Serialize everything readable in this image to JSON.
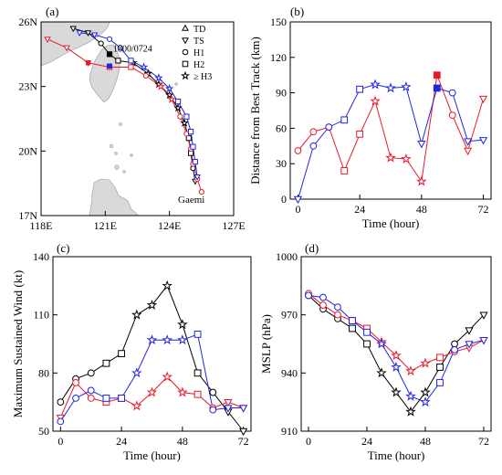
{
  "figure": {
    "panels": [
      "(a)",
      "(b)",
      "(c)",
      "(d)"
    ]
  },
  "colors": {
    "black": "#000000",
    "red": "#e8192c",
    "blue": "#1f25e0",
    "land": "#d9d9d9"
  },
  "chart_data": [
    {
      "type": "map",
      "panel": "(a)",
      "xlim": [
        118,
        127
      ],
      "ylim": [
        17,
        26
      ],
      "xticks": [
        "118E",
        "121E",
        "124E",
        "127E"
      ],
      "yticks": [
        "17N",
        "20N",
        "23N",
        "26N"
      ],
      "annotations": [
        "1800/0724",
        "Gaemi"
      ],
      "legend": [
        "TD",
        "TS",
        "H1",
        "H2",
        "≥ H3"
      ],
      "legend_markers": [
        "triangle-up",
        "triangle-down",
        "circle",
        "square",
        "star"
      ],
      "marker_point": {
        "lon": 121.2,
        "lat": 24.5,
        "label": "1800/0724"
      },
      "tracks": [
        {
          "color": "black",
          "points": [
            {
              "lon": 119.5,
              "lat": 25.7,
              "m": "triangle-down"
            },
            {
              "lon": 120.2,
              "lat": 25.5,
              "m": "triangle-down"
            },
            {
              "lon": 120.8,
              "lat": 25.0,
              "m": "circle"
            },
            {
              "lon": 121.2,
              "lat": 24.5,
              "m": "square"
            },
            {
              "lon": 121.6,
              "lat": 24.2,
              "m": "square"
            },
            {
              "lon": 122.3,
              "lat": 24.1,
              "m": "star"
            },
            {
              "lon": 123.0,
              "lat": 23.6,
              "m": "star"
            },
            {
              "lon": 123.5,
              "lat": 23.1,
              "m": "star"
            },
            {
              "lon": 124.0,
              "lat": 22.6,
              "m": "star"
            },
            {
              "lon": 124.4,
              "lat": 22.0,
              "m": "star"
            },
            {
              "lon": 124.7,
              "lat": 21.3,
              "m": "star"
            },
            {
              "lon": 124.9,
              "lat": 20.6,
              "m": "square"
            },
            {
              "lon": 125.0,
              "lat": 19.9,
              "m": "square"
            },
            {
              "lon": 125.1,
              "lat": 19.2,
              "m": "circle"
            },
            {
              "lon": 125.2,
              "lat": 18.6,
              "m": "triangle-down"
            }
          ]
        },
        {
          "color": "red",
          "points": [
            {
              "lon": 118.3,
              "lat": 25.2,
              "m": "triangle-down"
            },
            {
              "lon": 119.2,
              "lat": 24.8,
              "m": "triangle-down"
            },
            {
              "lon": 120.2,
              "lat": 24.1,
              "m": "triangle-down"
            },
            {
              "lon": 121.2,
              "lat": 23.9,
              "m": "square"
            },
            {
              "lon": 122.2,
              "lat": 23.9,
              "m": "square"
            },
            {
              "lon": 122.9,
              "lat": 23.5,
              "m": "circle"
            },
            {
              "lon": 123.6,
              "lat": 23.0,
              "m": "star"
            },
            {
              "lon": 124.1,
              "lat": 22.4,
              "m": "star"
            },
            {
              "lon": 124.5,
              "lat": 21.6,
              "m": "circle"
            },
            {
              "lon": 124.8,
              "lat": 20.8,
              "m": "circle"
            },
            {
              "lon": 125.0,
              "lat": 20.1,
              "m": "circle"
            },
            {
              "lon": 125.1,
              "lat": 19.4,
              "m": "circle"
            },
            {
              "lon": 125.3,
              "lat": 18.7,
              "m": "circle"
            },
            {
              "lon": 125.5,
              "lat": 18.1,
              "m": "circle"
            }
          ]
        },
        {
          "color": "blue",
          "points": [
            {
              "lon": 119.8,
              "lat": 25.5,
              "m": "triangle-down"
            },
            {
              "lon": 120.5,
              "lat": 25.4,
              "m": "triangle-down"
            },
            {
              "lon": 121.2,
              "lat": 25.2,
              "m": "circle"
            },
            {
              "lon": 121.7,
              "lat": 24.8,
              "m": "circle"
            },
            {
              "lon": 122.2,
              "lat": 24.2,
              "m": "square"
            },
            {
              "lon": 122.8,
              "lat": 23.9,
              "m": "star"
            },
            {
              "lon": 123.5,
              "lat": 23.4,
              "m": "star"
            },
            {
              "lon": 124.0,
              "lat": 22.9,
              "m": "star"
            },
            {
              "lon": 124.4,
              "lat": 22.3,
              "m": "square"
            },
            {
              "lon": 124.8,
              "lat": 21.6,
              "m": "square"
            },
            {
              "lon": 125.0,
              "lat": 20.9,
              "m": "square"
            },
            {
              "lon": 125.1,
              "lat": 20.2,
              "m": "square"
            },
            {
              "lon": 125.2,
              "lat": 19.5,
              "m": "square"
            },
            {
              "lon": 125.3,
              "lat": 18.8,
              "m": "triangle-down"
            }
          ]
        }
      ]
    },
    {
      "type": "line",
      "panel": "(b)",
      "xlabel": "Time (hour)",
      "ylabel": "Distance from Best Track (km)",
      "xlim": [
        -3,
        75
      ],
      "ylim": [
        0,
        150
      ],
      "xticks": [
        0,
        24,
        48,
        72
      ],
      "yticks": [
        0,
        30,
        60,
        90,
        120,
        150
      ],
      "series": [
        {
          "color": "red",
          "x": [
            0,
            6,
            12,
            18,
            24,
            30,
            36,
            42,
            48,
            54,
            60,
            66,
            72
          ],
          "y": [
            41,
            57,
            61,
            24,
            55,
            83,
            35,
            34,
            15,
            105,
            71,
            41,
            85
          ],
          "markers": [
            "circle",
            "circle",
            "circle",
            "square",
            "square",
            "star",
            "star",
            "star",
            "star",
            "square-filled",
            "circle",
            "triangle-down",
            "triangle-down"
          ]
        },
        {
          "color": "blue",
          "x": [
            0,
            6,
            12,
            18,
            24,
            30,
            36,
            42,
            48,
            54,
            60,
            66,
            72
          ],
          "y": [
            0,
            45,
            61,
            67,
            93,
            97,
            94,
            95,
            47,
            94,
            90,
            49,
            50
          ],
          "markers": [
            "triangle-down",
            "circle",
            "circle",
            "square",
            "square",
            "star",
            "star",
            "star",
            "triangle-down",
            "square-filled",
            "circle",
            "triangle-down",
            "triangle-down"
          ]
        }
      ]
    },
    {
      "type": "line",
      "panel": "(c)",
      "xlabel": "Time (hour)",
      "ylabel": "Maximum Sustained Wind (kt)",
      "xlim": [
        -3,
        75
      ],
      "ylim": [
        50,
        140
      ],
      "xticks": [
        0,
        24,
        48,
        72
      ],
      "yticks": [
        50,
        80,
        110,
        140
      ],
      "series": [
        {
          "color": "black",
          "x": [
            0,
            6,
            12,
            18,
            24,
            30,
            36,
            42,
            48,
            54,
            60,
            66,
            72
          ],
          "y": [
            65,
            77,
            80,
            85,
            90,
            110,
            115,
            125,
            105,
            80,
            70,
            60,
            50
          ],
          "markers": [
            "circle",
            "circle",
            "circle",
            "square",
            "square",
            "star",
            "star",
            "star",
            "star",
            "square",
            "circle",
            "triangle-down",
            "triangle-down"
          ]
        },
        {
          "color": "red",
          "x": [
            0,
            6,
            12,
            18,
            24,
            30,
            36,
            42,
            48,
            54,
            60,
            66,
            72
          ],
          "y": [
            57,
            75,
            67,
            65,
            67,
            63,
            70,
            78,
            70,
            69,
            62,
            65,
            62
          ],
          "markers": [
            "triangle-down",
            "circle",
            "circle",
            "square",
            "square",
            "star",
            "star",
            "star",
            "star",
            "square",
            "circle",
            "triangle-down",
            "triangle-down"
          ]
        },
        {
          "color": "blue",
          "x": [
            0,
            6,
            12,
            18,
            24,
            30,
            36,
            42,
            48,
            54,
            60,
            66,
            72
          ],
          "y": [
            55,
            67,
            71,
            67,
            67,
            80,
            97,
            97,
            97,
            100,
            61,
            62,
            62
          ],
          "markers": [
            "circle",
            "circle",
            "circle",
            "square",
            "square",
            "star",
            "star",
            "star",
            "star",
            "square",
            "circle",
            "triangle-down",
            "triangle-down"
          ]
        }
      ]
    },
    {
      "type": "line",
      "panel": "(d)",
      "xlabel": "Time (hour)",
      "ylabel": "MSLP (hPa)",
      "xlim": [
        -3,
        75
      ],
      "ylim": [
        910,
        1000
      ],
      "xticks": [
        0,
        24,
        48,
        72
      ],
      "yticks": [
        910,
        940,
        970,
        1000
      ],
      "series": [
        {
          "color": "black",
          "x": [
            0,
            6,
            12,
            18,
            24,
            30,
            36,
            42,
            48,
            54,
            60,
            66,
            72
          ],
          "y": [
            980,
            973,
            968,
            963,
            955,
            940,
            930,
            920,
            930,
            943,
            955,
            962,
            970
          ],
          "markers": [
            "circle",
            "circle",
            "circle",
            "square",
            "square",
            "star",
            "star",
            "star",
            "star",
            "square",
            "circle",
            "triangle-down",
            "triangle-down"
          ]
        },
        {
          "color": "red",
          "x": [
            0,
            6,
            12,
            18,
            24,
            30,
            36,
            42,
            48,
            54,
            60,
            66,
            72
          ],
          "y": [
            981,
            975,
            970,
            967,
            963,
            956,
            949,
            941,
            945,
            948,
            951,
            953,
            957
          ],
          "markers": [
            "circle",
            "circle",
            "circle",
            "square",
            "square",
            "star",
            "star",
            "star",
            "star",
            "square",
            "circle",
            "triangle-down",
            "triangle-down"
          ]
        },
        {
          "color": "blue",
          "x": [
            0,
            6,
            12,
            18,
            24,
            30,
            36,
            42,
            48,
            54,
            60,
            66,
            72
          ],
          "y": [
            980,
            979,
            974,
            967,
            961,
            955,
            943,
            928,
            925,
            935,
            952,
            955,
            957
          ],
          "markers": [
            "circle",
            "circle",
            "circle",
            "square",
            "square",
            "star",
            "star",
            "star",
            "star",
            "square",
            "circle",
            "triangle-down",
            "triangle-down"
          ]
        }
      ]
    }
  ]
}
